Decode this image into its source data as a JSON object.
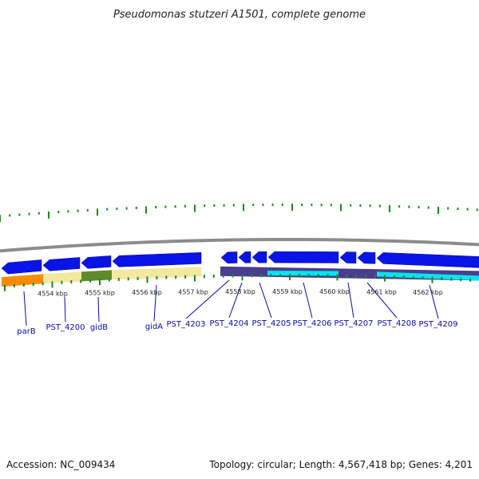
{
  "title": "Pseudomonas stutzeri A1501, complete genome",
  "footer": {
    "accession": "Accession: NC_009434",
    "summary": "Topology: circular; Length: 4,567,418 bp; Genes: 4,201"
  },
  "colors": {
    "gene_blue": "#0a14e6",
    "gene_label": "#0a0aa8",
    "backbone": "#8c8c8c",
    "gc_tick": "#1a8a1a",
    "cds_light": "#f2e8a0",
    "cds_orange": "#ff8c00",
    "cds_green": "#5e8a2a",
    "cds_purple": "#4a3d8f",
    "cds_cyan": "#00e5ee"
  },
  "scale": {
    "ticks": [
      {
        "label": "4554 kbp"
      },
      {
        "label": "4555 kbp"
      },
      {
        "label": "4556 kbp"
      },
      {
        "label": "4557 kbp"
      },
      {
        "label": "4558 kbp"
      },
      {
        "label": "4559 kbp"
      },
      {
        "label": "4560 kbp"
      },
      {
        "label": "4561 kbp"
      },
      {
        "label": "4562 kbp"
      }
    ]
  },
  "genes": [
    {
      "label": "parB"
    },
    {
      "label": "PST_4200"
    },
    {
      "label": "gidB"
    },
    {
      "label": "gidA"
    },
    {
      "label": "PST_4203"
    },
    {
      "label": "PST_4204"
    },
    {
      "label": "PST_4205"
    },
    {
      "label": "PST_4206"
    },
    {
      "label": "PST_4207"
    },
    {
      "label": "PST_4208"
    },
    {
      "label": "PST_4209"
    }
  ]
}
